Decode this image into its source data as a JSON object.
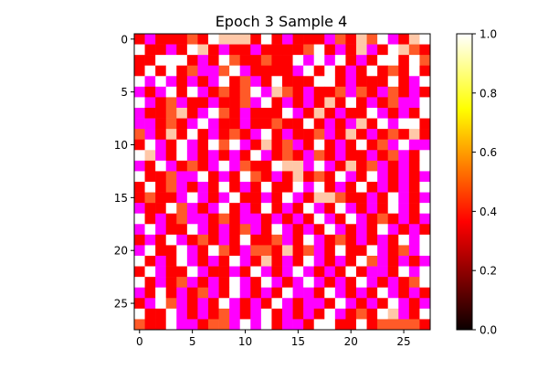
{
  "chart_data": {
    "type": "heatmap",
    "title": "Epoch 3 Sample 4",
    "xlabel": "",
    "ylabel": "",
    "rows": 28,
    "cols": 28,
    "x_ticks": [
      0,
      5,
      10,
      15,
      20,
      25
    ],
    "y_ticks": [
      0,
      5,
      10,
      15,
      20,
      25
    ],
    "colorbar": {
      "colormap": "hot",
      "min": 0.0,
      "max": 1.0,
      "ticks": [
        "0.0",
        "0.2",
        "0.4",
        "0.6",
        "0.8",
        "1.0"
      ]
    },
    "palette": {
      "high": "#ffffff",
      "peach": "#ffc8a8",
      "orange": "#ff5a28",
      "red": "#ff0000",
      "magenta": "#ff00ff"
    },
    "values": [
      "SMRDRHDWPPPRWDMRDRMHRPHWMDPW",
      "WDRMRWPDMRRMDRRDHWRMDPMRWPHR",
      "RDWWWDMRWHRRHRRWMWMWRMRWWRWH",
      "RWRWRHMMHWMRDRRMWRWRMRWRHRWR",
      "WMWMRMRMWRHMRWRRRWWRMRDRWRMW",
      "MRMWRWMRHRHWMPHRMRRHMHRMHRMR",
      "WMRHMRRMRDHMWRMRMRPRWRMRHMMW",
      "MRRHPRMWHRMRDRWMRPRMRRWMRMRW",
      "MMRHRMWMRRMRRHDRWRMRMPRWMWWR",
      "HMRPRWRMRHRMWDMRRHMRPRMRHRPR",
      "RWMRWMRWHWMRPRHMRWRMRWRHMWMM",
      "WPMRWMRMRMRWMRHRMHRMRDMRHMRW",
      "MRWMRHRMWMHRRWPPMWMRPRHMRMRW",
      "WRRHMMWDMRWHRMRPRHRWMRWMRMRM",
      "RWRHMRMRWRMRWRRWMWRMRWRMRMRW",
      "RHRRMWMRMWRRMRWMRPPHRRMRWMRM",
      "MRRWHMRMWRMRWRMRWMRWMRMRWMRW",
      "WRMRHMMRHRMMRMRMRWMRWMRHRMRM",
      "MWMRRWMRMRHMRWMRMRWMRMRWMRMR",
      "RMRWMRHRMRWRRHMRWMRHRMRMRWMW",
      "MWRRWMRWHRMHHRPRHMRWRRWMRHMW",
      "WRMRWMRMRWMRPRMRWMRMRWHMRMRM",
      "RWMRRWMRRMRWMRMWMRMRWRMMRWMW",
      "WRMRHMRMRWMRWMRMWMRMRWMRMRHW",
      "MRWRMRHMRWMRMRWMMRWMRMRWMRMR",
      "RMWHMRMRWMRMRWMRMMRWMRMRWMRM",
      "WRRWMRMRHMRMWRMRMRWMRHRWPMRW",
      "HRRWMMRHHMWMWRMMRWWRRWRHHHHR"
    ]
  }
}
